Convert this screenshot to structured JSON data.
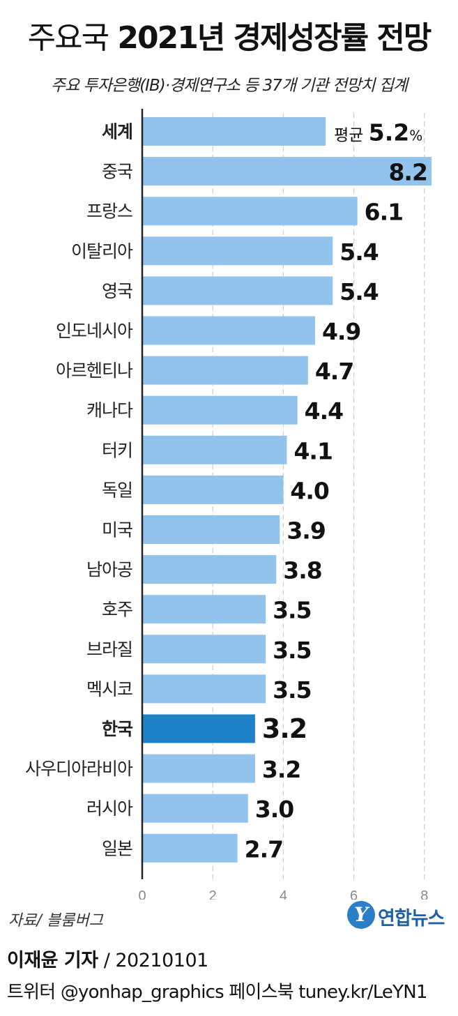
{
  "header": {
    "title_prefix": "주요국",
    "title_main": "2021년 경제성장률 전망",
    "subtitle": "주요 투자은행(IB)·경제연구소 등 37개 기관 전망치 집계"
  },
  "chart_data": {
    "type": "bar",
    "orientation": "horizontal",
    "title": "주요국 2021년 경제성장률 전망",
    "subtitle": "주요 투자은행(IB)·경제연구소 등 37개 기관 전망치 집계",
    "xlabel": "",
    "ylabel": "",
    "categories": [
      "세계",
      "중국",
      "프랑스",
      "이탈리아",
      "영국",
      "인도네시아",
      "아르헨티나",
      "캐나다",
      "터키",
      "독일",
      "미국",
      "남아공",
      "호주",
      "브라질",
      "멕시코",
      "한국",
      "사우디아라비아",
      "러시아",
      "일본"
    ],
    "values": [
      5.2,
      8.2,
      6.1,
      5.4,
      5.4,
      4.9,
      4.7,
      4.4,
      4.1,
      4.0,
      3.9,
      3.8,
      3.5,
      3.5,
      3.5,
      3.2,
      3.2,
      3.0,
      2.7
    ],
    "value_labels": [
      "5.2",
      "8.2",
      "6.1",
      "5.4",
      "5.4",
      "4.9",
      "4.7",
      "4.4",
      "4.1",
      "4.0",
      "3.9",
      "3.8",
      "3.5",
      "3.5",
      "3.5",
      "3.2",
      "3.2",
      "3.0",
      "2.7"
    ],
    "bold_categories": [
      "세계",
      "한국"
    ],
    "highlight_category": "한국",
    "first_label_prefix": "평균",
    "first_label_unit": "%",
    "xlim": [
      0,
      8.3
    ],
    "xticks": [
      0,
      2,
      4,
      6,
      8
    ],
    "xtick_labels": [
      "0",
      "2",
      "4",
      "6",
      "8"
    ],
    "grid": "vertical dashed",
    "colors": {
      "bar": "#92c3ec",
      "highlight": "#1d82c8",
      "grid": "#cccccc",
      "axis": "#222222",
      "tick": "#888888"
    }
  },
  "footer": {
    "source": "자료/ 블룸버그",
    "logo_mark": "Y",
    "logo_text": "연합뉴스",
    "reporter": "이재윤 기자",
    "date": "/ 20210101",
    "social": "트위터 @yonhap_graphics  페이스북 tuney.kr/LeYN1"
  }
}
